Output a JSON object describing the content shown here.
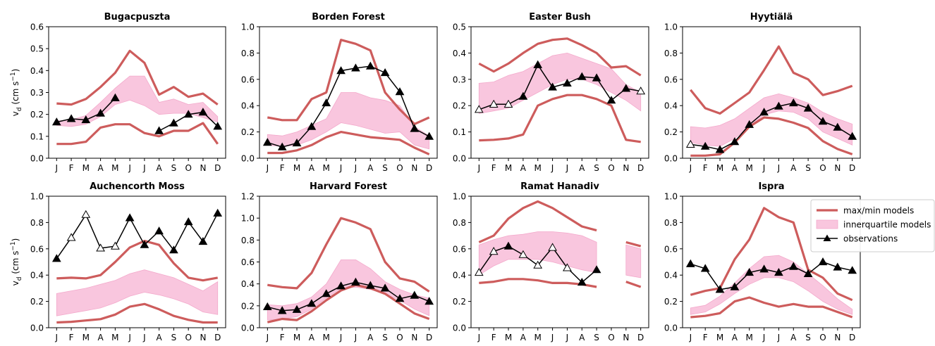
{
  "figure": {
    "months": [
      "J",
      "F",
      "M",
      "A",
      "M",
      "J",
      "J",
      "A",
      "S",
      "O",
      "N",
      "D"
    ],
    "ylabel_main": "v",
    "ylabel_sub": "d",
    "ylabel_unit": " (cm s",
    "ylabel_exp": "−1",
    "ylabel_close": ")"
  },
  "legend": {
    "items": [
      {
        "label": "max/min models",
        "kind": "line",
        "color": "#cd5c5c"
      },
      {
        "label": "innerquartile models",
        "kind": "band",
        "color": "#f9c6de"
      },
      {
        "label": "observations",
        "kind": "obs",
        "color": "#000000"
      }
    ]
  },
  "colors": {
    "maxmin": "#cd5c5c",
    "band": "#f9c6de",
    "obs": "#000000"
  },
  "chart_data": [
    {
      "type": "line",
      "title": "Bugacpuszta",
      "ylim": [
        0,
        0.6
      ],
      "yticks": [
        "0.0",
        "0.1",
        "0.2",
        "0.3",
        "0.4",
        "0.5",
        "0.6"
      ],
      "ytick_values": [
        0,
        0.1,
        0.2,
        0.3,
        0.4,
        0.5,
        0.6
      ],
      "x": [
        "J",
        "F",
        "M",
        "A",
        "M",
        "J",
        "J",
        "A",
        "S",
        "O",
        "N",
        "D"
      ],
      "max": [
        0.25,
        0.245,
        0.27,
        0.325,
        0.39,
        0.49,
        0.435,
        0.29,
        0.325,
        0.28,
        0.295,
        0.245
      ],
      "min": [
        0.065,
        0.065,
        0.075,
        0.14,
        0.155,
        0.155,
        0.115,
        0.1,
        0.125,
        0.125,
        0.16,
        0.065
      ],
      "q75": [
        0.17,
        0.175,
        0.195,
        0.255,
        0.32,
        0.375,
        0.375,
        0.255,
        0.27,
        0.245,
        0.255,
        0.19
      ],
      "q25": [
        0.15,
        0.145,
        0.155,
        0.19,
        0.245,
        0.265,
        0.24,
        0.2,
        0.205,
        0.205,
        0.185,
        0.165
      ],
      "observations": [
        0.165,
        0.18,
        0.175,
        0.205,
        0.275,
        null,
        null,
        0.125,
        0.16,
        0.2,
        0.21,
        0.145
      ],
      "obs_filled": [
        true,
        true,
        true,
        true,
        true,
        null,
        null,
        true,
        true,
        true,
        true,
        true
      ]
    },
    {
      "type": "line",
      "title": "Borden Forest",
      "ylim": [
        0,
        1.0
      ],
      "yticks": [
        "0.0",
        "0.2",
        "0.4",
        "0.6",
        "0.8",
        "1.0"
      ],
      "ytick_values": [
        0,
        0.2,
        0.4,
        0.6,
        0.8,
        1.0
      ],
      "x": [
        "J",
        "F",
        "M",
        "A",
        "M",
        "J",
        "J",
        "A",
        "S",
        "O",
        "N",
        "D"
      ],
      "max": [
        0.31,
        0.29,
        0.29,
        0.45,
        0.5,
        0.9,
        0.87,
        0.82,
        0.5,
        0.37,
        0.26,
        0.31
      ],
      "min": [
        0.04,
        0.04,
        0.06,
        0.1,
        0.16,
        0.2,
        0.18,
        0.16,
        0.15,
        0.14,
        0.08,
        0.03
      ],
      "q75": [
        0.18,
        0.17,
        0.2,
        0.25,
        0.3,
        0.5,
        0.5,
        0.46,
        0.44,
        0.4,
        0.24,
        0.17
      ],
      "q25": [
        0.1,
        0.09,
        0.1,
        0.14,
        0.2,
        0.27,
        0.25,
        0.22,
        0.19,
        0.2,
        0.1,
        0.07
      ],
      "observations": [
        0.12,
        0.085,
        0.115,
        0.24,
        0.42,
        0.665,
        0.685,
        0.7,
        0.65,
        0.505,
        0.225,
        0.165
      ],
      "obs_filled": [
        true,
        true,
        true,
        true,
        true,
        true,
        true,
        true,
        true,
        true,
        true,
        true
      ]
    },
    {
      "type": "line",
      "title": "Easter Bush",
      "ylim": [
        0,
        0.5
      ],
      "yticks": [
        "0.0",
        "0.1",
        "0.2",
        "0.3",
        "0.4",
        "0.5"
      ],
      "ytick_values": [
        0,
        0.1,
        0.2,
        0.3,
        0.4,
        0.5
      ],
      "x": [
        "J",
        "F",
        "M",
        "A",
        "M",
        "J",
        "J",
        "A",
        "S",
        "O",
        "N",
        "D"
      ],
      "max": [
        0.36,
        0.33,
        0.36,
        0.4,
        0.435,
        0.45,
        0.455,
        0.43,
        0.4,
        0.345,
        0.35,
        0.315
      ],
      "min": [
        0.068,
        0.07,
        0.075,
        0.09,
        0.2,
        0.225,
        0.24,
        0.24,
        0.225,
        0.2,
        0.07,
        0.062
      ],
      "q75": [
        0.285,
        0.29,
        0.315,
        0.33,
        0.36,
        0.39,
        0.4,
        0.38,
        0.36,
        0.34,
        0.28,
        0.25
      ],
      "q25": [
        0.17,
        0.18,
        0.19,
        0.22,
        0.25,
        0.28,
        0.3,
        0.3,
        0.28,
        0.25,
        0.22,
        0.18
      ],
      "observations": [
        0.185,
        0.205,
        0.205,
        0.235,
        0.355,
        0.27,
        0.285,
        0.31,
        0.305,
        0.22,
        0.265,
        0.255
      ],
      "obs_filled": [
        false,
        false,
        false,
        true,
        true,
        true,
        true,
        true,
        true,
        true,
        true,
        false
      ]
    },
    {
      "type": "line",
      "title": "Hyytiälä",
      "ylim": [
        0,
        1.0
      ],
      "yticks": [
        "0.0",
        "0.2",
        "0.4",
        "0.6",
        "0.8",
        "1.0"
      ],
      "ytick_values": [
        0,
        0.2,
        0.4,
        0.6,
        0.8,
        1.0
      ],
      "x": [
        "J",
        "F",
        "M",
        "A",
        "M",
        "J",
        "J",
        "A",
        "S",
        "O",
        "N",
        "D"
      ],
      "max": [
        0.52,
        0.38,
        0.34,
        0.42,
        0.5,
        0.67,
        0.85,
        0.65,
        0.6,
        0.48,
        0.51,
        0.55
      ],
      "min": [
        0.02,
        0.02,
        0.03,
        0.12,
        0.24,
        0.31,
        0.3,
        0.27,
        0.23,
        0.13,
        0.07,
        0.03
      ],
      "q75": [
        0.24,
        0.23,
        0.25,
        0.3,
        0.38,
        0.46,
        0.49,
        0.46,
        0.42,
        0.35,
        0.3,
        0.26
      ],
      "q25": [
        0.12,
        0.1,
        0.09,
        0.15,
        0.24,
        0.33,
        0.36,
        0.35,
        0.3,
        0.2,
        0.15,
        0.1
      ],
      "observations": [
        0.105,
        0.09,
        0.065,
        0.125,
        0.255,
        0.35,
        0.395,
        0.42,
        0.38,
        0.28,
        0.235,
        0.165
      ],
      "obs_filled": [
        false,
        true,
        true,
        true,
        true,
        true,
        true,
        true,
        true,
        true,
        true,
        true
      ]
    },
    {
      "type": "line",
      "title": "Auchencorth Moss",
      "ylim": [
        0,
        1.0
      ],
      "yticks": [
        "0.0",
        "0.2",
        "0.4",
        "0.6",
        "0.8",
        "1.0"
      ],
      "ytick_values": [
        0,
        0.2,
        0.4,
        0.6,
        0.8,
        1.0
      ],
      "x": [
        "J",
        "F",
        "M",
        "A",
        "M",
        "J",
        "J",
        "A",
        "S",
        "O",
        "N",
        "D"
      ],
      "max": [
        0.375,
        0.38,
        0.375,
        0.4,
        0.5,
        0.61,
        0.66,
        0.63,
        0.49,
        0.38,
        0.36,
        0.38
      ],
      "min": [
        0.04,
        0.045,
        0.055,
        0.065,
        0.1,
        0.16,
        0.18,
        0.14,
        0.09,
        0.06,
        0.04,
        0.04
      ],
      "q75": [
        0.26,
        0.28,
        0.3,
        0.33,
        0.36,
        0.41,
        0.44,
        0.41,
        0.38,
        0.33,
        0.28,
        0.35
      ],
      "q25": [
        0.09,
        0.11,
        0.13,
        0.15,
        0.19,
        0.24,
        0.27,
        0.25,
        0.22,
        0.18,
        0.12,
        0.1
      ],
      "observations": [
        0.525,
        0.685,
        0.86,
        0.605,
        0.62,
        0.835,
        0.63,
        0.735,
        0.59,
        0.805,
        0.655,
        0.87
      ],
      "obs_filled": [
        true,
        false,
        false,
        false,
        false,
        true,
        true,
        true,
        true,
        true,
        true,
        true
      ]
    },
    {
      "type": "line",
      "title": "Harvard Forest",
      "ylim": [
        0,
        1.2
      ],
      "yticks": [
        "0.0",
        "0.2",
        "0.4",
        "0.6",
        "0.8",
        "1.0",
        "1.2"
      ],
      "ytick_values": [
        0,
        0.2,
        0.4,
        0.6,
        0.8,
        1.0,
        1.2
      ],
      "x": [
        "J",
        "F",
        "M",
        "A",
        "M",
        "J",
        "J",
        "A",
        "S",
        "O",
        "N",
        "D"
      ],
      "max": [
        0.39,
        0.37,
        0.36,
        0.5,
        0.76,
        1.0,
        0.96,
        0.9,
        0.6,
        0.45,
        0.42,
        0.33
      ],
      "min": [
        0.05,
        0.08,
        0.07,
        0.15,
        0.25,
        0.34,
        0.39,
        0.36,
        0.31,
        0.22,
        0.13,
        0.08
      ],
      "q75": [
        0.21,
        0.2,
        0.22,
        0.28,
        0.4,
        0.62,
        0.62,
        0.54,
        0.42,
        0.35,
        0.3,
        0.27
      ],
      "q25": [
        0.07,
        0.08,
        0.1,
        0.17,
        0.27,
        0.36,
        0.37,
        0.35,
        0.31,
        0.25,
        0.17,
        0.11
      ],
      "observations": [
        0.19,
        0.155,
        0.165,
        0.22,
        0.31,
        0.38,
        0.415,
        0.385,
        0.36,
        0.265,
        0.295,
        0.24
      ],
      "obs_filled": [
        true,
        true,
        true,
        true,
        true,
        true,
        true,
        true,
        true,
        true,
        true,
        true
      ]
    },
    {
      "type": "line",
      "title": "Ramat Hanadiv",
      "ylim": [
        0,
        1.0
      ],
      "yticks": [
        "0.0",
        "0.2",
        "0.4",
        "0.6",
        "0.8",
        "1.0"
      ],
      "ytick_values": [
        0,
        0.2,
        0.4,
        0.6,
        0.8,
        1.0
      ],
      "x": [
        "J",
        "F",
        "M",
        "A",
        "M",
        "J",
        "J",
        "A",
        "S",
        "O",
        "N",
        "D"
      ],
      "max": [
        0.65,
        0.7,
        0.83,
        0.91,
        0.96,
        0.91,
        0.84,
        0.77,
        0.74,
        null,
        0.65,
        0.62
      ],
      "min": [
        0.34,
        0.35,
        0.37,
        0.37,
        0.36,
        0.34,
        0.34,
        0.33,
        0.31,
        null,
        0.35,
        0.31
      ],
      "q75": [
        0.63,
        0.67,
        0.7,
        0.71,
        0.73,
        0.73,
        0.72,
        0.7,
        0.65,
        null,
        0.63,
        0.6
      ],
      "q25": [
        0.4,
        0.47,
        0.52,
        0.52,
        0.52,
        0.5,
        0.47,
        0.44,
        0.42,
        null,
        0.4,
        0.38
      ],
      "observations": [
        0.42,
        0.58,
        0.62,
        0.555,
        0.475,
        0.61,
        0.455,
        0.345,
        0.44,
        null,
        null,
        null
      ],
      "obs_filled": [
        false,
        false,
        true,
        false,
        false,
        false,
        false,
        true,
        true,
        null,
        null,
        null
      ]
    },
    {
      "type": "line",
      "title": "Ispra",
      "ylim": [
        0,
        1.0
      ],
      "yticks": [
        "0.0",
        "0.2",
        "0.4",
        "0.6",
        "0.8",
        "1.0"
      ],
      "ytick_values": [
        0,
        0.2,
        0.4,
        0.6,
        0.8,
        1.0
      ],
      "x": [
        "J",
        "F",
        "M",
        "A",
        "M",
        "J",
        "J",
        "A",
        "S",
        "O",
        "N",
        "D"
      ],
      "max": [
        0.25,
        0.28,
        0.3,
        0.52,
        0.67,
        0.91,
        0.84,
        0.8,
        0.44,
        0.38,
        0.26,
        0.21
      ],
      "min": [
        0.08,
        0.09,
        0.11,
        0.2,
        0.23,
        0.19,
        0.16,
        0.18,
        0.16,
        0.16,
        0.12,
        0.08
      ],
      "q75": [
        0.15,
        0.17,
        0.24,
        0.34,
        0.45,
        0.54,
        0.55,
        0.5,
        0.41,
        0.32,
        0.22,
        0.14
      ],
      "q25": [
        0.1,
        0.12,
        0.18,
        0.26,
        0.33,
        0.38,
        0.38,
        0.35,
        0.28,
        0.2,
        0.14,
        0.1
      ],
      "observations": [
        0.485,
        0.45,
        0.29,
        0.31,
        0.42,
        0.445,
        0.42,
        0.465,
        0.41,
        0.5,
        0.46,
        0.435
      ],
      "obs_filled": [
        true,
        true,
        true,
        true,
        true,
        true,
        true,
        true,
        true,
        true,
        true,
        true
      ]
    }
  ]
}
